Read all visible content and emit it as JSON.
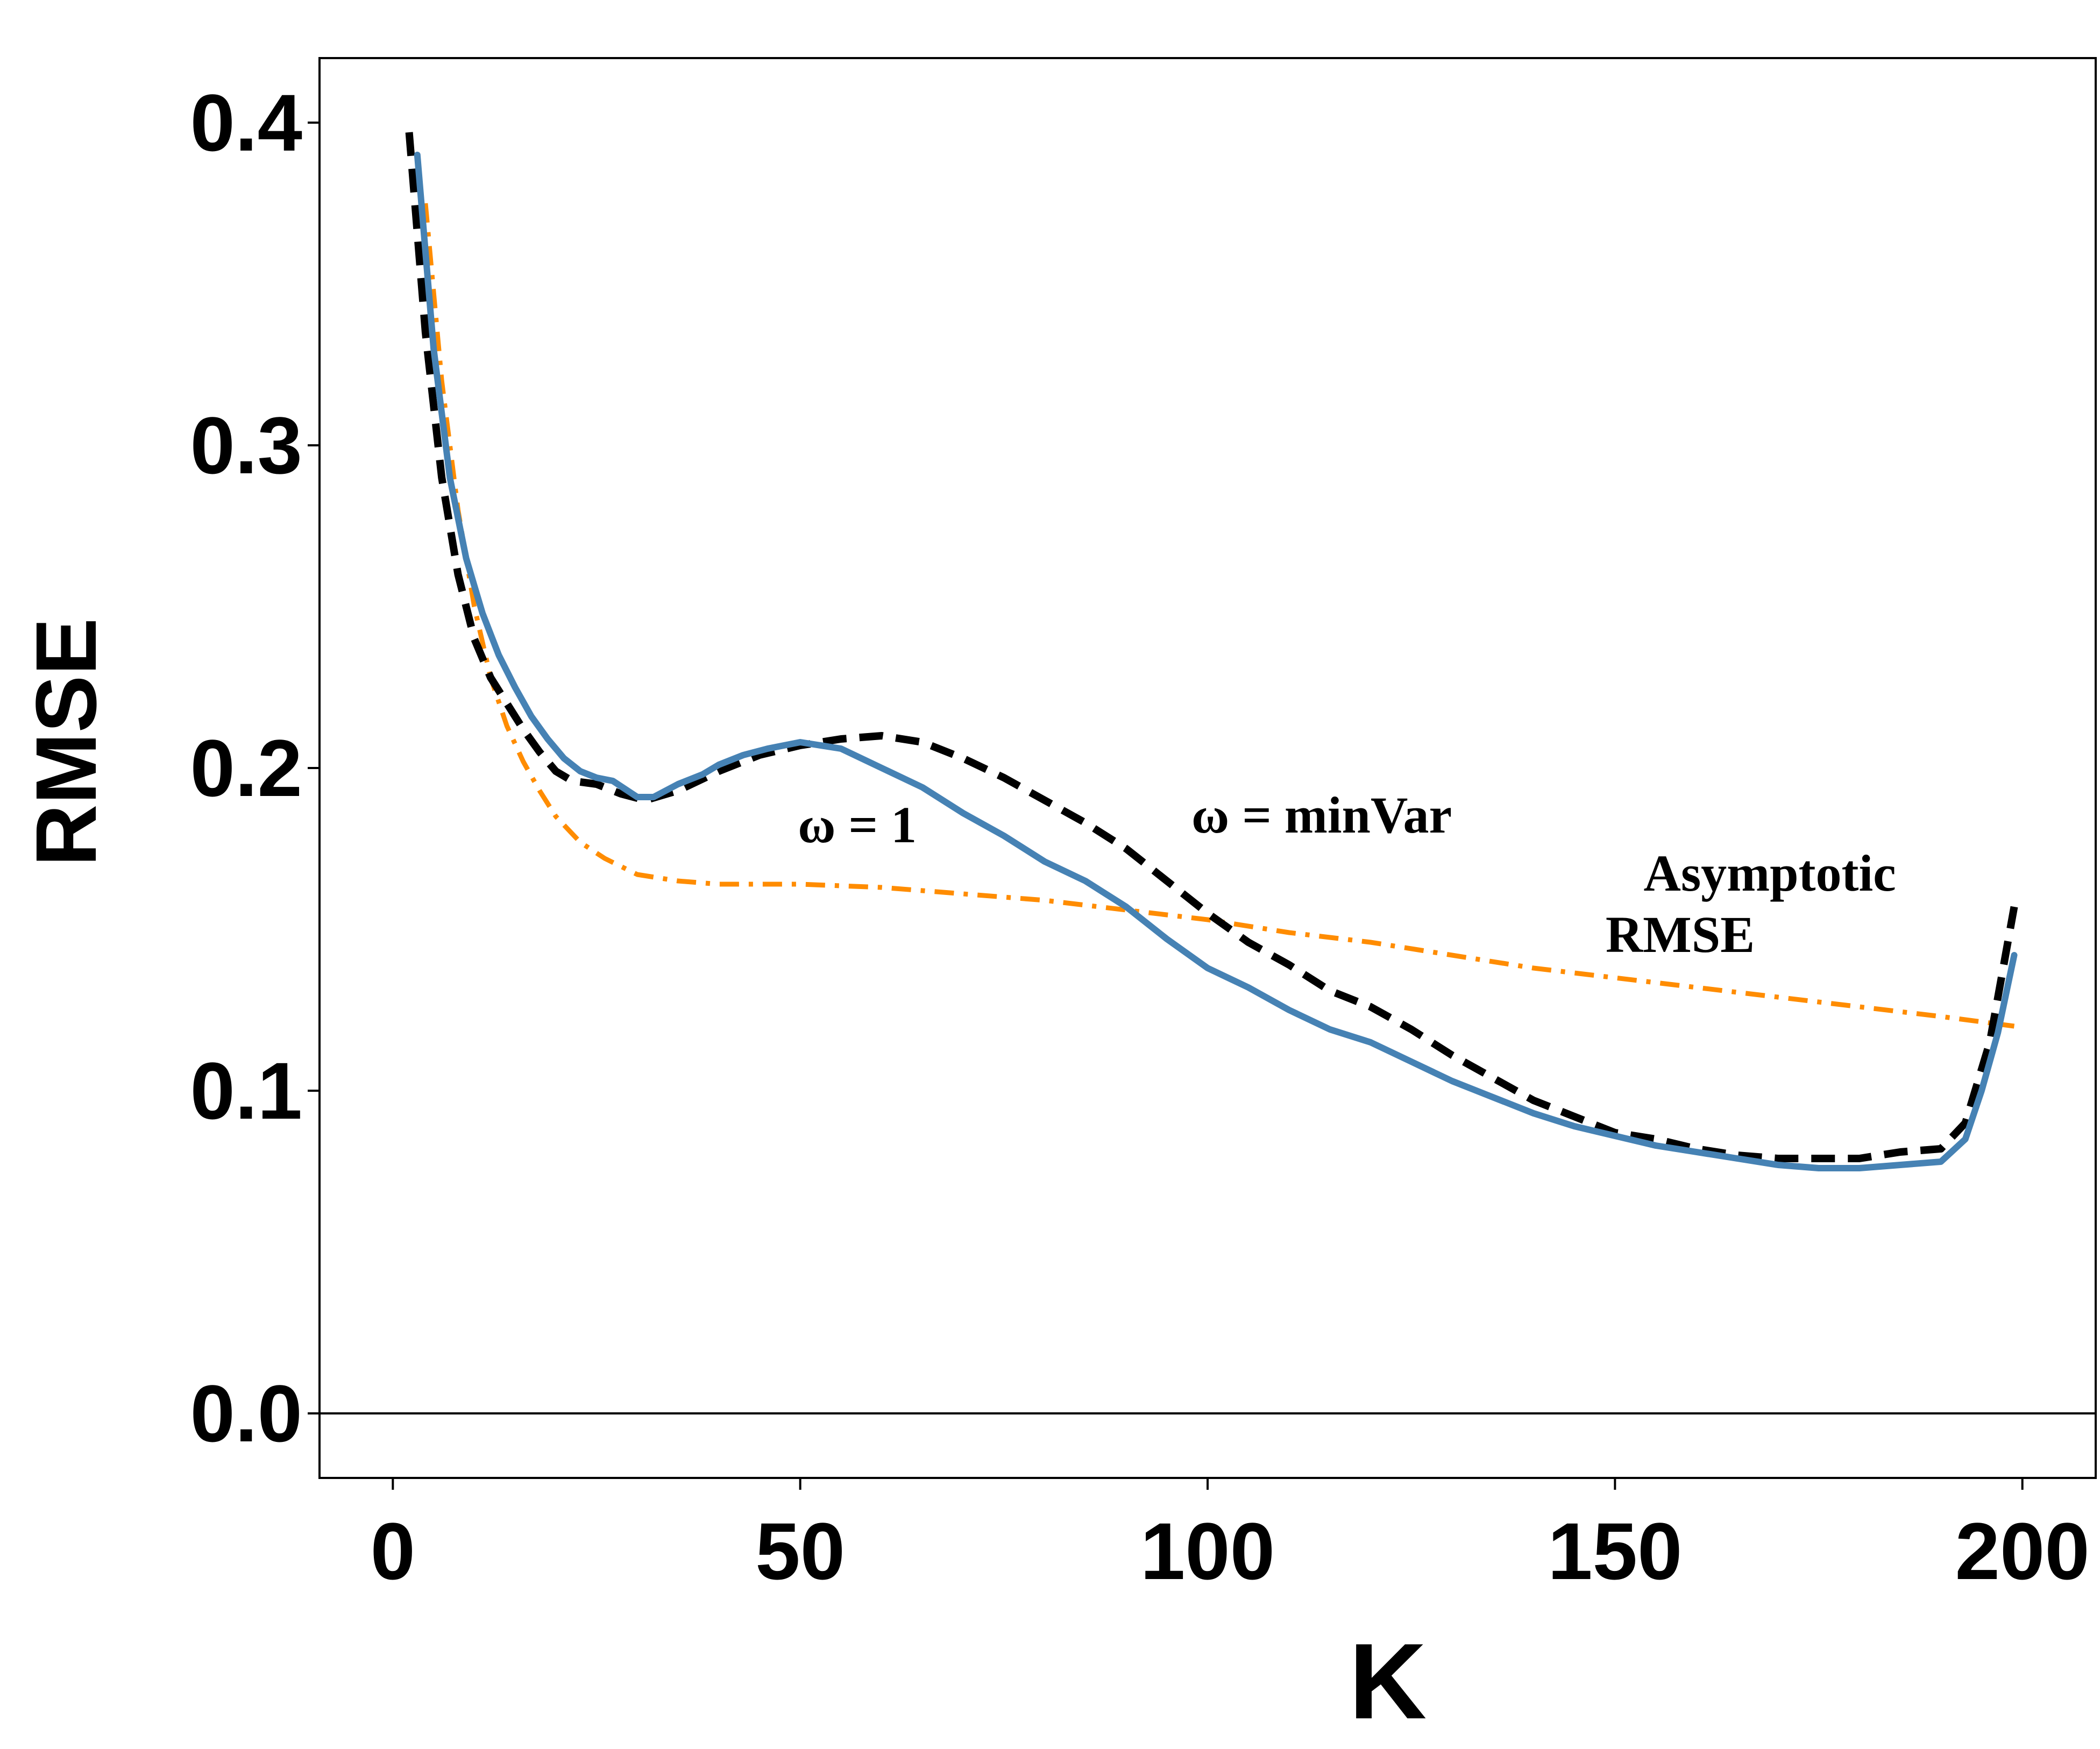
{
  "chart_data": {
    "type": "line",
    "xlabel": "K",
    "ylabel": "RMSE",
    "xlim": [
      -9,
      209
    ],
    "ylim": [
      -0.02,
      0.42
    ],
    "xticks": [
      0,
      50,
      100,
      150,
      200
    ],
    "xtick_labels": [
      "0",
      "50",
      "100",
      "150",
      "200"
    ],
    "yticks": [
      0.0,
      0.1,
      0.2,
      0.3,
      0.4
    ],
    "ytick_labels": [
      "0.0",
      "0.1",
      "0.2",
      "0.3",
      "0.4"
    ],
    "grid": false,
    "legend": "none",
    "reference_line_y": 0.0,
    "annotations": [
      {
        "text": "ω = 1",
        "x": 57,
        "y": 0.177
      },
      {
        "text": "ω = minVar",
        "x": 114,
        "y": 0.18
      },
      {
        "text": "Asymptotic",
        "x": 169,
        "y": 0.162
      },
      {
        "text": "RMSE",
        "x": 158,
        "y": 0.143
      }
    ],
    "series": [
      {
        "key": "omega-1",
        "style": "solid",
        "color": "#4682B4",
        "x": [
          3,
          5,
          7,
          9,
          11,
          13,
          15,
          17,
          19,
          21,
          23,
          25,
          27,
          30,
          32,
          35,
          38,
          40,
          43,
          46,
          50,
          55,
          60,
          65,
          70,
          75,
          80,
          85,
          90,
          95,
          100,
          105,
          110,
          115,
          120,
          125,
          130,
          135,
          140,
          145,
          150,
          155,
          160,
          165,
          170,
          175,
          180,
          185,
          190,
          193,
          195,
          197,
          199
        ],
        "y": [
          0.39,
          0.33,
          0.29,
          0.265,
          0.248,
          0.235,
          0.225,
          0.216,
          0.209,
          0.203,
          0.199,
          0.197,
          0.196,
          0.191,
          0.191,
          0.195,
          0.198,
          0.201,
          0.204,
          0.206,
          0.208,
          0.206,
          0.2,
          0.194,
          0.186,
          0.179,
          0.171,
          0.165,
          0.157,
          0.147,
          0.138,
          0.132,
          0.125,
          0.119,
          0.115,
          0.109,
          0.103,
          0.098,
          0.093,
          0.089,
          0.086,
          0.083,
          0.081,
          0.079,
          0.077,
          0.076,
          0.076,
          0.077,
          0.078,
          0.085,
          0.1,
          0.118,
          0.142
        ]
      },
      {
        "key": "omega-minvar",
        "style": "dashed",
        "color": "#000000",
        "x": [
          2,
          4,
          6,
          8,
          10,
          12,
          14,
          16,
          18,
          20,
          22,
          25,
          28,
          31,
          35,
          40,
          45,
          50,
          55,
          60,
          65,
          70,
          75,
          80,
          85,
          90,
          95,
          100,
          105,
          110,
          115,
          120,
          125,
          130,
          135,
          140,
          145,
          150,
          155,
          160,
          165,
          170,
          175,
          180,
          185,
          190,
          193,
          196,
          199
        ],
        "y": [
          0.397,
          0.335,
          0.29,
          0.26,
          0.24,
          0.228,
          0.22,
          0.212,
          0.205,
          0.199,
          0.196,
          0.195,
          0.192,
          0.19,
          0.193,
          0.199,
          0.204,
          0.207,
          0.209,
          0.21,
          0.208,
          0.203,
          0.197,
          0.19,
          0.183,
          0.175,
          0.165,
          0.155,
          0.146,
          0.139,
          0.131,
          0.126,
          0.119,
          0.111,
          0.104,
          0.097,
          0.092,
          0.087,
          0.085,
          0.082,
          0.08,
          0.079,
          0.079,
          0.079,
          0.081,
          0.082,
          0.09,
          0.115,
          0.157
        ]
      },
      {
        "key": "asymptotic-rmse",
        "style": "dashdot",
        "color": "#FF8C00",
        "x": [
          4,
          6,
          8,
          10,
          12,
          14,
          16,
          18,
          20,
          23,
          26,
          30,
          35,
          40,
          50,
          60,
          70,
          80,
          90,
          100,
          110,
          120,
          130,
          140,
          150,
          160,
          170,
          180,
          190,
          199
        ],
        "y": [
          0.375,
          0.32,
          0.28,
          0.25,
          0.228,
          0.213,
          0.202,
          0.193,
          0.185,
          0.177,
          0.172,
          0.167,
          0.165,
          0.164,
          0.164,
          0.163,
          0.161,
          0.159,
          0.156,
          0.153,
          0.149,
          0.146,
          0.142,
          0.138,
          0.135,
          0.132,
          0.129,
          0.126,
          0.123,
          0.12
        ]
      }
    ]
  }
}
